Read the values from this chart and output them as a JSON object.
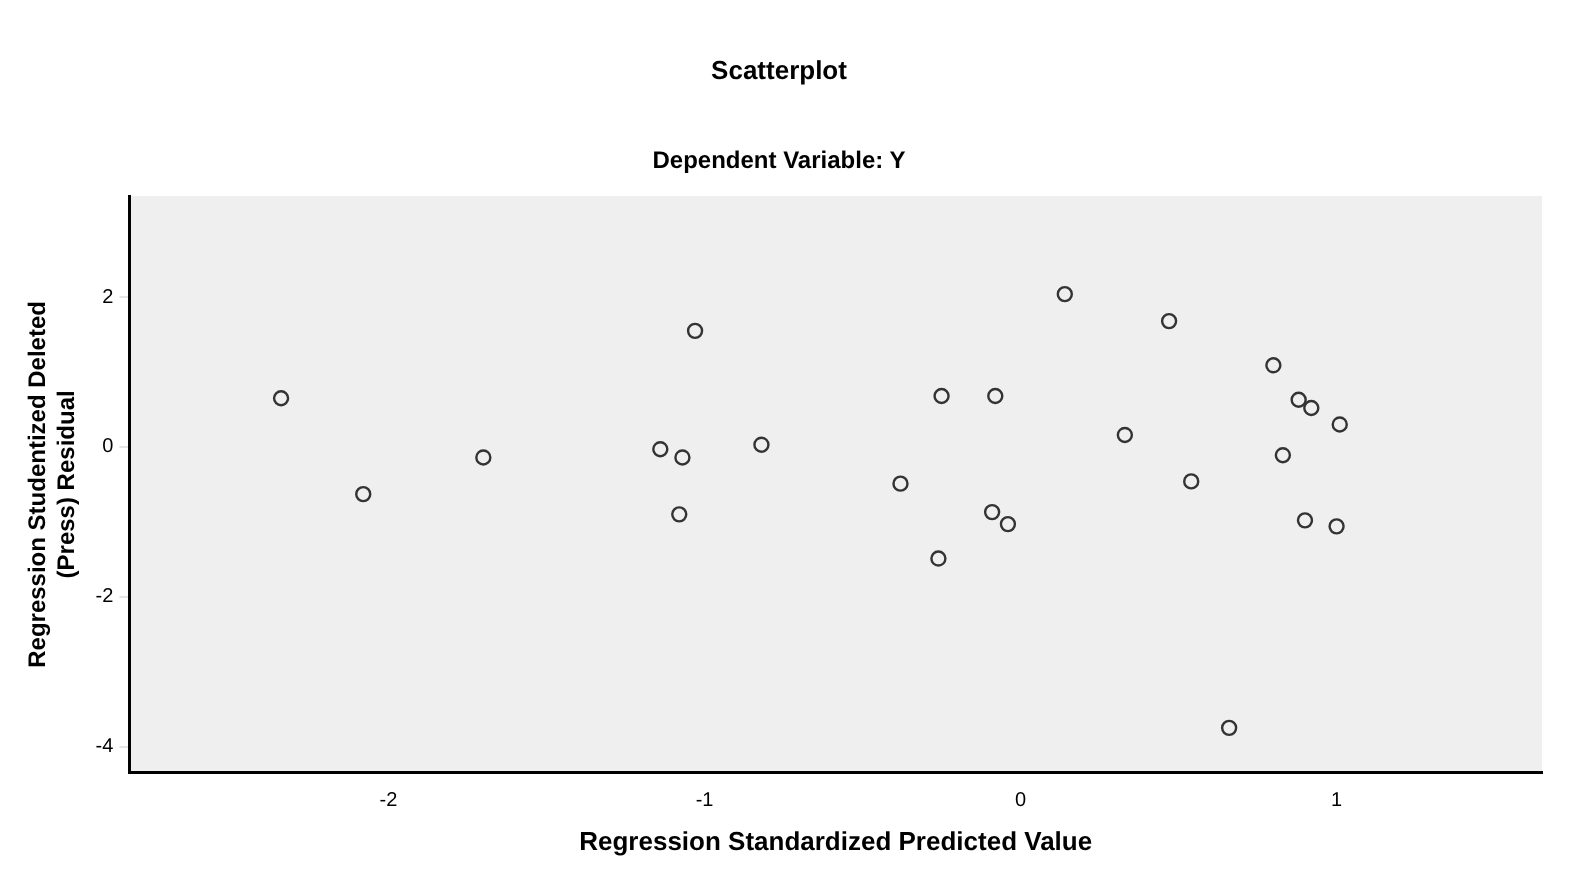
{
  "chart_data": {
    "type": "scatter",
    "title": "Scatterplot",
    "subtitle": "Dependent Variable: Y",
    "xlabel": "Regression Standardized Predicted Value",
    "ylabel": "Regression Studentized Deleted (Press) Residual",
    "x": [
      -2.34,
      -2.08,
      -1.7,
      -1.14,
      -1.07,
      -1.03,
      -1.08,
      -0.82,
      -0.38,
      -0.25,
      -0.26,
      -0.09,
      -0.04,
      -0.08,
      0.14,
      0.33,
      0.47,
      0.54,
      0.66,
      0.8,
      0.83,
      0.88,
      0.92,
      1.01,
      0.9,
      1.0
    ],
    "series": [
      {
        "color": "#333333",
        "values": [
          0.65,
          -0.63,
          -0.14,
          -0.03,
          -0.14,
          1.55,
          -0.9,
          0.03,
          -0.49,
          0.68,
          -1.49,
          -0.87,
          -1.03,
          0.68,
          2.04,
          0.16,
          1.68,
          -0.46,
          -3.75,
          1.09,
          -0.11,
          0.63,
          0.52,
          0.3,
          -0.98,
          -1.06
        ]
      }
    ],
    "xlim": [
      -2.82,
      1.65
    ],
    "ylim": [
      -4.35,
      3.35
    ],
    "xticks": [
      -2,
      -1,
      0,
      1
    ],
    "yticks": [
      2,
      0,
      -2,
      -4
    ],
    "grid": false,
    "legend": false,
    "marker": "circle"
  }
}
